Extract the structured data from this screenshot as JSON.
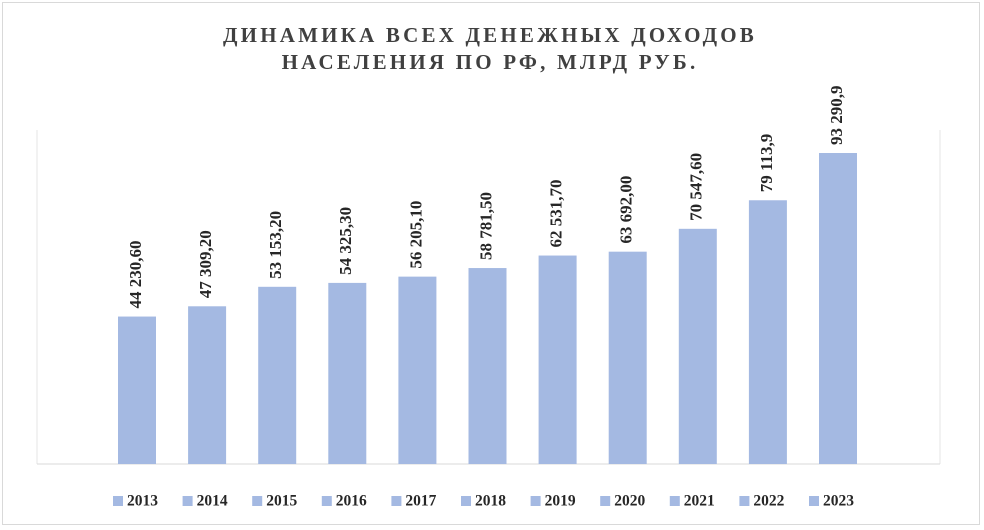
{
  "chart_data": {
    "type": "bar",
    "title": [
      "ДИНАМИКА ВСЕХ ДЕНЕЖНЫХ ДОХОДОВ",
      "НАСЕЛЕНИЯ ПО РФ, МЛРД РУБ."
    ],
    "categories": [
      "2013",
      "2014",
      "2015",
      "2016",
      "2017",
      "2018",
      "2019",
      "2020",
      "2021",
      "2022",
      "2023"
    ],
    "values": [
      44230.6,
      47309.2,
      53153.2,
      54325.3,
      56205.1,
      58781.5,
      62531.7,
      63692.0,
      70547.6,
      79113.9,
      93290.9
    ],
    "value_labels": [
      "44 230,60",
      "47 309,20",
      "53 153,20",
      "54 325,30",
      "56 205,10",
      "58 781,50",
      "62 531,70",
      "63 692,00",
      "70 547,60",
      "79 113,9",
      "93 290,9"
    ],
    "color": "#a4b9e2",
    "legend": "bottom"
  }
}
